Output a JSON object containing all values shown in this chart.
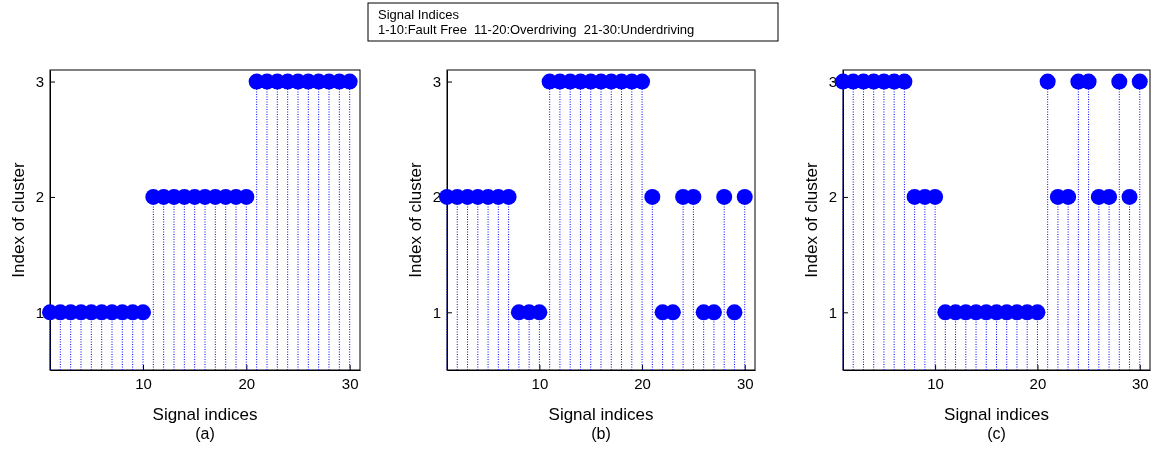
{
  "chart_data": [
    {
      "type": "other",
      "title": "Signal Indices",
      "annotations": [
        "1-10:Fault Free  11-20:Overdriving  21-30:Underdriving"
      ]
    },
    {
      "type": "lollipop",
      "xlabel": "Signal indices",
      "ylabel": "Index of cluster",
      "annotations": [
        "(a)"
      ],
      "x": [
        1,
        2,
        3,
        4,
        5,
        6,
        7,
        8,
        9,
        10,
        11,
        12,
        13,
        14,
        15,
        16,
        17,
        18,
        19,
        20,
        21,
        22,
        23,
        24,
        25,
        26,
        27,
        28,
        29,
        30
      ],
      "series": [
        {
          "color": "#0000ff",
          "values": [
            1,
            1,
            1,
            1,
            1,
            1,
            1,
            1,
            1,
            1,
            2,
            2,
            2,
            2,
            2,
            2,
            2,
            2,
            2,
            2,
            3,
            3,
            3,
            3,
            3,
            3,
            3,
            3,
            3,
            3
          ]
        }
      ],
      "xlim": [
        1,
        31
      ],
      "ylim": [
        0.5,
        3.1
      ],
      "xticks": [
        10,
        20,
        30
      ],
      "yticks": [
        1,
        2,
        3
      ],
      "marker": "circle",
      "line_style": "dotted",
      "grid": false
    },
    {
      "type": "lollipop",
      "xlabel": "Signal indices",
      "ylabel": "Index of cluster",
      "annotations": [
        "(b)"
      ],
      "x": [
        1,
        2,
        3,
        4,
        5,
        6,
        7,
        8,
        9,
        10,
        11,
        12,
        13,
        14,
        15,
        16,
        17,
        18,
        19,
        20,
        21,
        22,
        23,
        24,
        25,
        26,
        27,
        28,
        29,
        30
      ],
      "series": [
        {
          "color": "#0000ff",
          "values": [
            2,
            2,
            2,
            2,
            2,
            2,
            2,
            1,
            1,
            1,
            3,
            3,
            3,
            3,
            3,
            3,
            3,
            3,
            3,
            3,
            2,
            1,
            1,
            2,
            2,
            1,
            1,
            2,
            1,
            2
          ]
        }
      ],
      "xlim": [
        1,
        31
      ],
      "ylim": [
        0.5,
        3.1
      ],
      "xticks": [
        10,
        20,
        30
      ],
      "yticks": [
        1,
        2,
        3
      ],
      "marker": "circle",
      "line_style": "dotted",
      "grid": false
    },
    {
      "type": "lollipop",
      "xlabel": "Signal indices",
      "ylabel": "Index of cluster",
      "annotations": [
        "(c)"
      ],
      "x": [
        1,
        2,
        3,
        4,
        5,
        6,
        7,
        8,
        9,
        10,
        11,
        12,
        13,
        14,
        15,
        16,
        17,
        18,
        19,
        20,
        21,
        22,
        23,
        24,
        25,
        26,
        27,
        28,
        29,
        30
      ],
      "series": [
        {
          "color": "#0000ff",
          "values": [
            3,
            3,
            3,
            3,
            3,
            3,
            3,
            2,
            2,
            2,
            1,
            1,
            1,
            1,
            1,
            1,
            1,
            1,
            1,
            1,
            3,
            2,
            2,
            3,
            3,
            2,
            2,
            3,
            2,
            3
          ]
        }
      ],
      "xlim": [
        1,
        31
      ],
      "ylim": [
        0.5,
        3.1
      ],
      "xticks": [
        10,
        20,
        30
      ],
      "yticks": [
        1,
        2,
        3
      ],
      "marker": "circle",
      "line_style": "dotted",
      "grid": false
    }
  ]
}
